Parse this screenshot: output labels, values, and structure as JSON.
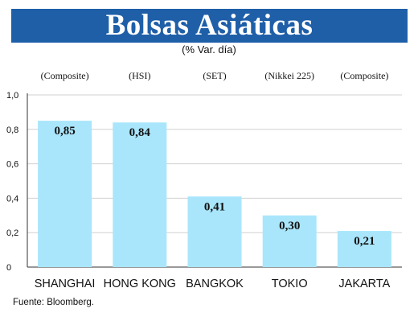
{
  "header": {
    "title": "Bolsas Asiáticas",
    "subtitle": "(% Var. día)"
  },
  "footer": {
    "source": "Fuente: Bloomberg."
  },
  "colors": {
    "title_bg": "#1f5fa8",
    "bar": "#a9e6fb",
    "grid": "#d0d0d0"
  },
  "chart_data": {
    "type": "bar",
    "title": "Bolsas Asiáticas",
    "subtitle": "(% Var. día)",
    "categories": [
      "SHANGHAI",
      "HONG KONG",
      "BANGKOK",
      "TOKIO",
      "JAKARTA"
    ],
    "index_labels": [
      "(Composite)",
      "(HSI)",
      "(SET)",
      "(Nikkei 225)",
      "(Composite)"
    ],
    "values": [
      0.85,
      0.84,
      0.41,
      0.3,
      0.21
    ],
    "value_labels": [
      "0,85",
      "0,84",
      "0,41",
      "0,30",
      "0,21"
    ],
    "y_ticks": [
      0,
      0.2,
      0.4,
      0.6,
      0.8,
      1.0
    ],
    "y_tick_labels": [
      "0",
      "0,2",
      "0,4",
      "0,6",
      "0,8",
      "1,0"
    ],
    "ylim": [
      0,
      1.0
    ],
    "grid": true,
    "legend": false
  }
}
